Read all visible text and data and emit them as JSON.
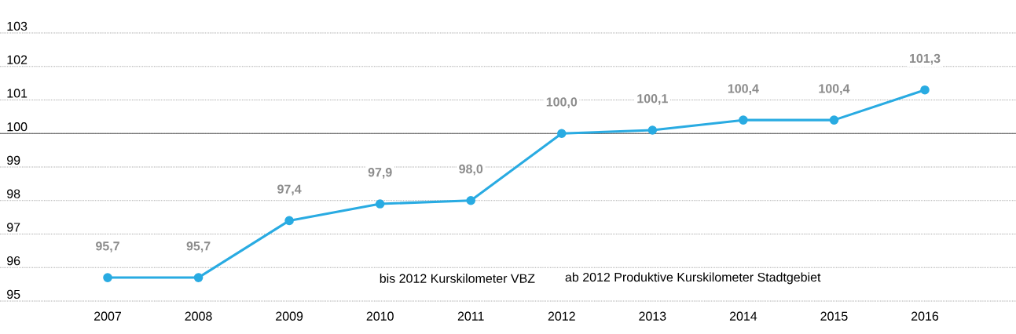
{
  "chart_data": {
    "type": "line",
    "categories": [
      "2007",
      "2008",
      "2009",
      "2010",
      "2011",
      "2012",
      "2013",
      "2014",
      "2015",
      "2016"
    ],
    "series": [
      {
        "color": "#29abe2",
        "values": [
          95.7,
          95.7,
          97.4,
          97.9,
          98.0,
          100.0,
          100.1,
          100.4,
          100.4,
          101.3
        ],
        "value_labels": [
          "95,7",
          "95,7",
          "97,4",
          "97,9",
          "98,0",
          "100,0",
          "100,1",
          "100,4",
          "100,4",
          "101,3"
        ]
      }
    ],
    "ylim": [
      95,
      103
    ],
    "yticks": [
      95,
      96,
      97,
      98,
      99,
      100,
      101,
      102,
      103
    ],
    "grid": "y",
    "marker": "circle",
    "line_style": "solid",
    "ref_lines": [
      {
        "axis": "y",
        "value": 100,
        "color": "#555555"
      }
    ],
    "annotations": [
      "bis 2012 Kurskilometer VBZ",
      "ab 2012 Produktive Kurskilometer Stadtgebiet"
    ]
  }
}
